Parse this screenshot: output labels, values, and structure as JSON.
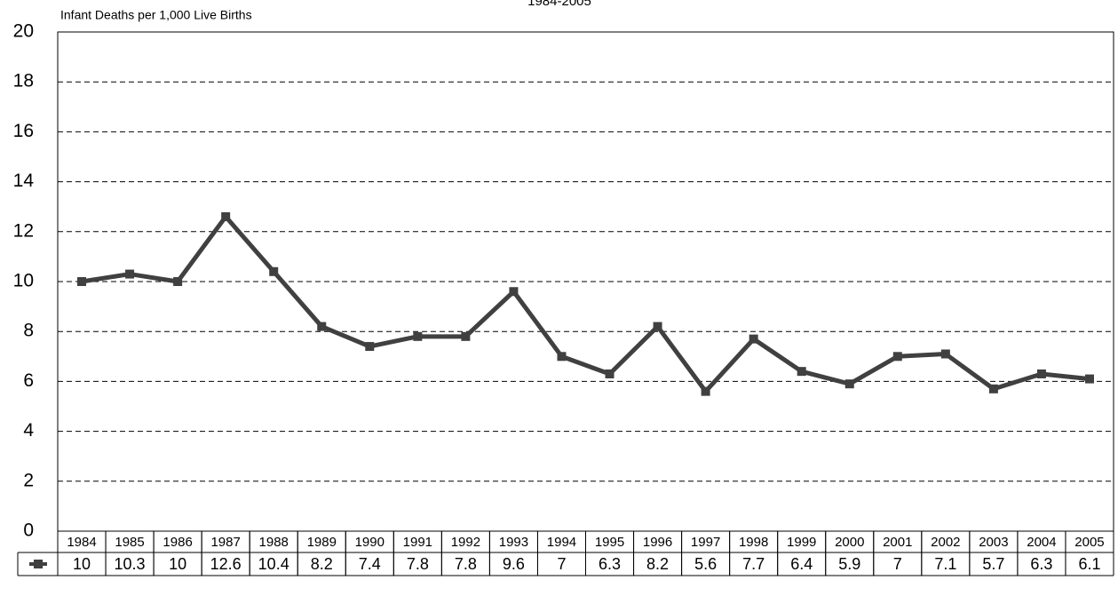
{
  "chart_data": {
    "type": "line",
    "title": "1984-2005",
    "y_label": "Infant Deaths per 1,000 Live Births",
    "categories": [
      "1984",
      "1985",
      "1986",
      "1987",
      "1988",
      "1989",
      "1990",
      "1991",
      "1992",
      "1993",
      "1994",
      "1995",
      "1996",
      "1997",
      "1998",
      "1999",
      "2000",
      "2001",
      "2002",
      "2003",
      "2004",
      "2005"
    ],
    "series": [
      {
        "color": "#404040",
        "values": [
          10,
          10.3,
          10,
          12.6,
          10.4,
          8.2,
          7.4,
          7.8,
          7.8,
          9.6,
          7,
          6.3,
          8.2,
          5.6,
          7.7,
          6.4,
          5.9,
          7,
          7.1,
          5.7,
          6.3,
          6.1
        ]
      }
    ],
    "ylim": [
      0,
      20
    ],
    "yticks": [
      0,
      2,
      4,
      6,
      8,
      10,
      12,
      14,
      16,
      18,
      20
    ],
    "grid": true
  }
}
